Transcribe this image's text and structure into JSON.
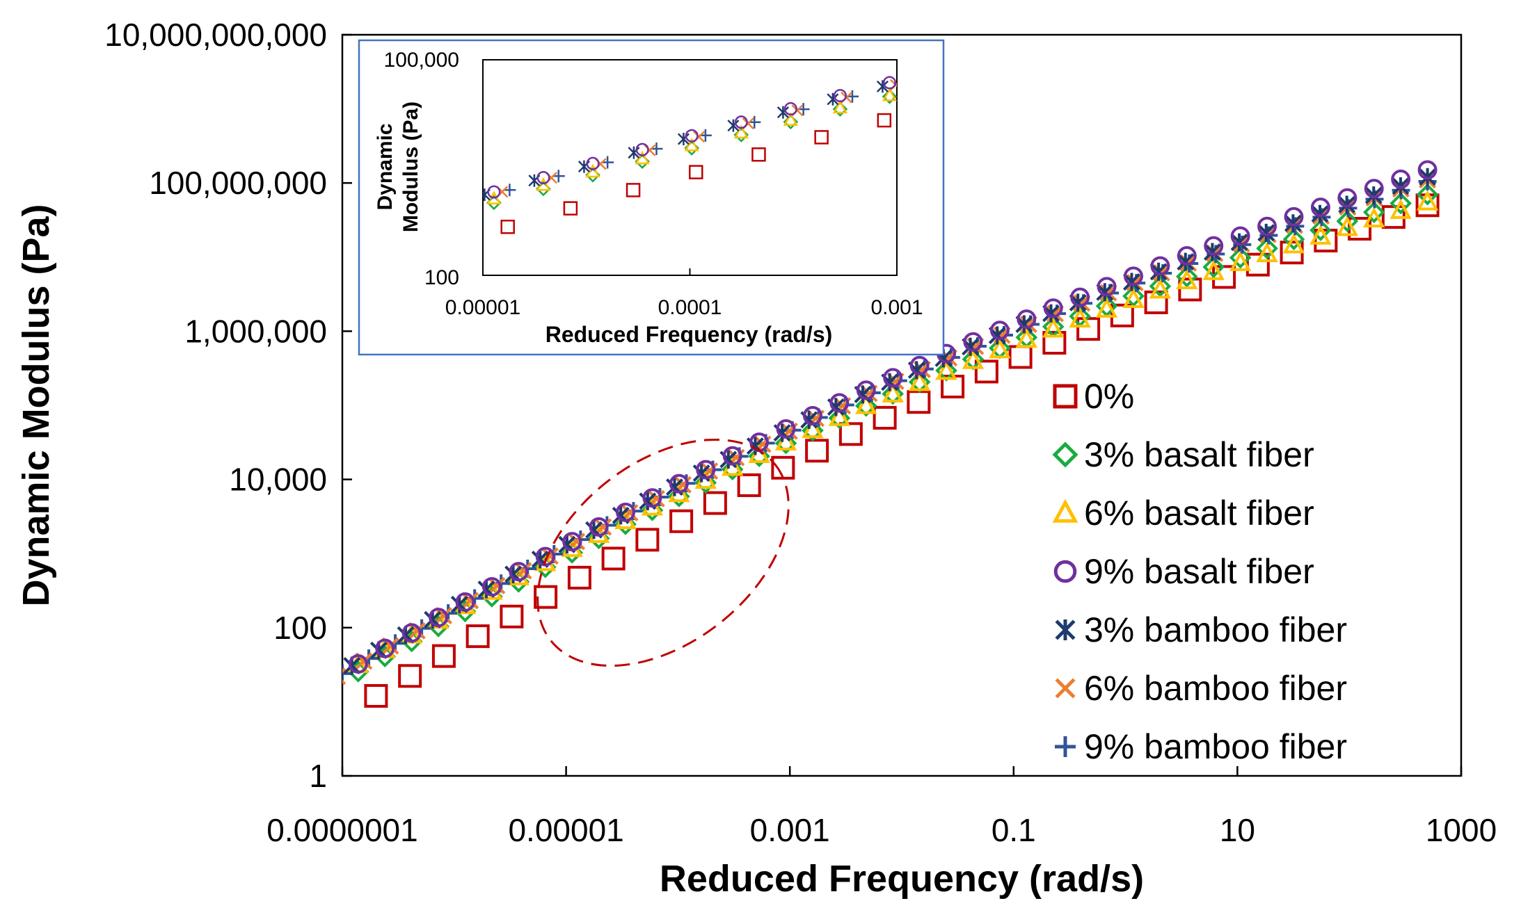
{
  "chart_data": [
    {
      "id": "main",
      "type": "scatter",
      "xscale": "log",
      "yscale": "log",
      "xlabel": "Reduced Frequency (rad/s)",
      "ylabel": "Dynamic Modulus (Pa)",
      "xlim": [
        1e-07,
        1000
      ],
      "ylim": [
        1,
        10000000000
      ],
      "xticks": [
        1e-07,
        1e-05,
        0.001,
        0.1,
        10,
        1000
      ],
      "xtick_labels": [
        "0.0000001",
        "0.00001",
        "0.001",
        "0.1",
        "10",
        "1000"
      ],
      "yticks": [
        1,
        100,
        10000,
        1000000,
        100000000,
        10000000000
      ],
      "ytick_labels": [
        "1",
        "100",
        "10,000",
        "1,000,000",
        "100,000,000",
        "10,000,000,000"
      ],
      "grid": false,
      "legend_position": "bottom-right",
      "annotation": "dashed ellipse highlighting the low-frequency region",
      "series": [
        {
          "name": "0%",
          "marker": "square",
          "color": "#C00000",
          "x_range": [
            2e-07,
            500
          ],
          "y_range": [
            12,
            50000000
          ],
          "points": 32
        },
        {
          "name": "3% basalt fiber",
          "marker": "diamond",
          "color": "#1AAB40",
          "x_range": [
            8e-08,
            500
          ],
          "y_range": [
            16,
            70000000
          ],
          "points": 42
        },
        {
          "name": "6% basalt fiber",
          "marker": "triangle",
          "color": "#FFC000",
          "x_range": [
            8e-08,
            500
          ],
          "y_range": [
            20,
            55000000
          ],
          "points": 42
        },
        {
          "name": "9% basalt fiber",
          "marker": "circle",
          "color": "#7030A0",
          "x_range": [
            8e-08,
            500
          ],
          "y_range": [
            20,
            150000000
          ],
          "points": 42
        },
        {
          "name": "3% bamboo fiber",
          "marker": "asterisk",
          "color": "#1F3A6E",
          "x_range": [
            7e-08,
            500
          ],
          "y_range": [
            19,
            120000000
          ],
          "points": 42
        },
        {
          "name": "6% bamboo fiber",
          "marker": "x",
          "color": "#ED7D31",
          "x_range": [
            9e-08,
            500
          ],
          "y_range": [
            22,
            110000000
          ],
          "points": 42
        },
        {
          "name": "9% bamboo fiber",
          "marker": "plus",
          "color": "#2F5597",
          "x_range": [
            1e-07,
            500
          ],
          "y_range": [
            24,
            105000000
          ],
          "points": 42
        }
      ]
    },
    {
      "id": "inset",
      "type": "scatter",
      "xscale": "log",
      "yscale": "log",
      "xlabel": "Reduced Frequency (rad/s)",
      "ylabel": "Dynamic Modulus (Pa)",
      "ylabel_lines": [
        "Dynamic",
        "Modulus (Pa)"
      ],
      "xlim": [
        1e-05,
        0.001
      ],
      "ylim": [
        100,
        100000
      ],
      "xtick_labels": [
        "0.00001",
        "0.0001",
        "0.001"
      ],
      "ytick_labels": [
        "100,000",
        "100"
      ],
      "grid": false
    }
  ]
}
